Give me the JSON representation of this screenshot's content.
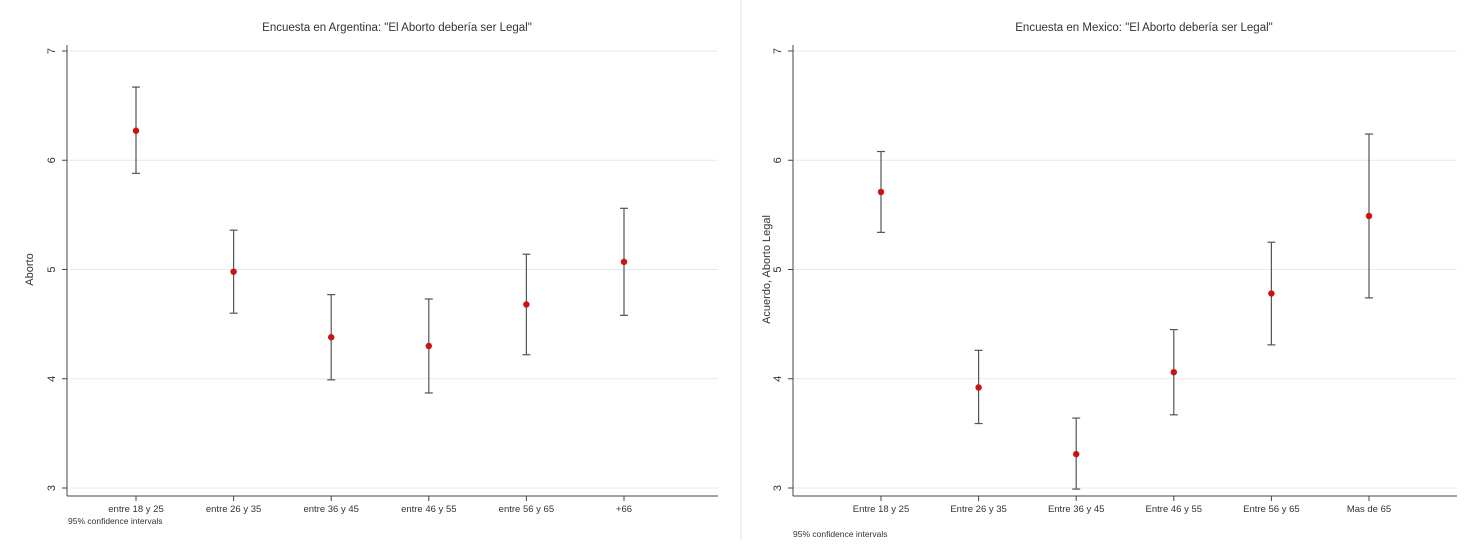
{
  "chart_data": [
    {
      "type": "scatter",
      "title": "Encuesta en Argentina: \"El Aborto debería ser Legal\"",
      "xlabel": "",
      "ylabel": "Aborto",
      "note": "95% confidence intervals",
      "categories": [
        "entre 18 y 25",
        "entre 26 y 35",
        "entre 36 y 45",
        "entre 46 y 55",
        "entre 56 y 65",
        "+66"
      ],
      "series": [
        {
          "values": [
            6.27,
            4.98,
            4.38,
            4.3,
            4.68,
            5.07
          ],
          "ci_low": [
            5.88,
            4.6,
            3.99,
            3.87,
            4.22,
            4.58
          ],
          "ci_high": [
            6.67,
            5.36,
            4.77,
            4.73,
            5.14,
            5.56
          ]
        }
      ],
      "ylim": [
        3,
        7
      ],
      "yticks": [
        3,
        4,
        5,
        6,
        7
      ],
      "grid": true,
      "marker_color": "#cc1111",
      "ci_color": "#555555"
    },
    {
      "type": "scatter",
      "title": "Encuesta en Mexico: \"El Aborto debería ser Legal\"",
      "xlabel": "",
      "ylabel": "Acuerdo, Aborto Legal",
      "note": "95% confidence intervals",
      "categories": [
        "Entre 18 y 25",
        "Entre 26 y 35",
        "Entre 36 y 45",
        "Entre 46 y 55",
        "Entre 56 y 65",
        "Mas de 65"
      ],
      "series": [
        {
          "values": [
            5.71,
            3.92,
            3.31,
            4.06,
            4.78,
            5.49
          ],
          "ci_low": [
            5.34,
            3.59,
            2.99,
            3.67,
            4.31,
            4.74
          ],
          "ci_high": [
            6.08,
            4.26,
            3.64,
            4.45,
            5.25,
            6.24
          ]
        }
      ],
      "ylim": [
        3,
        7
      ],
      "yticks": [
        3,
        4,
        5,
        6,
        7
      ],
      "grid": true,
      "marker_color": "#cc1111",
      "ci_color": "#555555"
    }
  ]
}
